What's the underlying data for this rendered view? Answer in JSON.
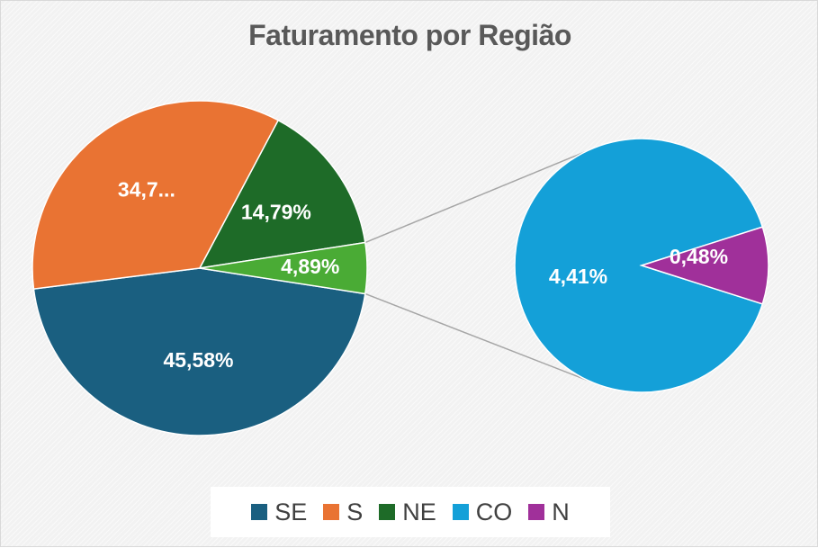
{
  "chart_data": {
    "type": "pie",
    "subtype": "pie-of-pie",
    "title": "Faturamento por Região",
    "slices": [
      {
        "name": "SE",
        "value": 45.58,
        "label": "45,58%",
        "color": "#1a5f80"
      },
      {
        "name": "S",
        "value": 34.75,
        "label": "34,7...",
        "color": "#e97333"
      },
      {
        "name": "NE",
        "value": 14.79,
        "label": "14,79%",
        "color": "#1e6b28"
      },
      {
        "name": "CO",
        "value": 4.41,
        "label": "4,41%",
        "color": "#14a0d8"
      },
      {
        "name": "N",
        "value": 0.48,
        "label": "0,48%",
        "color": "#a0309a"
      }
    ],
    "secondary_group": {
      "label": "4,89%",
      "value": 4.89,
      "members": [
        "CO",
        "N"
      ],
      "color": "#4aab35"
    },
    "legend_position": "bottom"
  }
}
